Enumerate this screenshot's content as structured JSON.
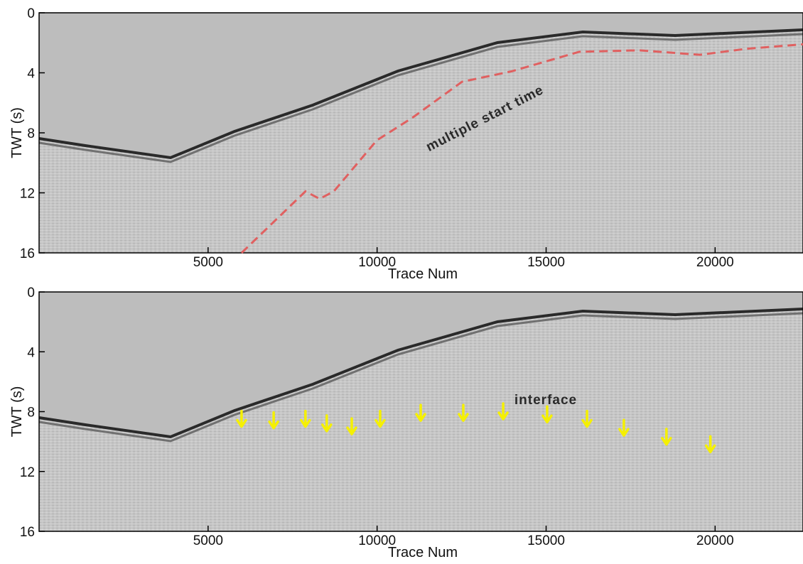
{
  "chart_data": [
    {
      "type": "seismic",
      "ylabel": "TWT (s)",
      "xlabel": "Trace Num",
      "xlim": [
        0,
        22600
      ],
      "ylim": [
        16,
        0
      ],
      "xticks": [
        5000,
        10000,
        15000,
        20000
      ],
      "yticks": [
        0,
        4,
        8,
        12,
        16
      ],
      "annotation": "multiple start time",
      "lines": [
        {
          "color": "#e06060",
          "x": [
            5990,
            7880,
            8300,
            8720,
            9990,
            11040,
            12510,
            13980,
            15980,
            17760,
            19550,
            20920,
            22600
          ],
          "y": [
            16,
            11.9,
            12.4,
            11.9,
            8.5,
            7.0,
            4.6,
            3.9,
            2.6,
            2.5,
            2.8,
            2.4,
            2.1
          ]
        }
      ]
    },
    {
      "type": "seismic",
      "ylabel": "TWT (s)",
      "xlabel": "Trace Num",
      "xlim": [
        0,
        22600
      ],
      "ylim": [
        16,
        0
      ],
      "xticks": [
        5000,
        10000,
        15000,
        20000
      ],
      "yticks": [
        0,
        4,
        8,
        12,
        16
      ],
      "annotation": "interface",
      "markers": {
        "color": "#f5f000",
        "x": [
          5990,
          6940,
          7880,
          8510,
          9250,
          10090,
          11290,
          12550,
          13730,
          15030,
          16210,
          17300,
          18560,
          19860
        ],
        "y": [
          9.0,
          9.1,
          9.0,
          9.3,
          9.5,
          9.0,
          8.6,
          8.6,
          8.5,
          8.7,
          9.0,
          9.6,
          10.2,
          10.7
        ]
      }
    }
  ]
}
